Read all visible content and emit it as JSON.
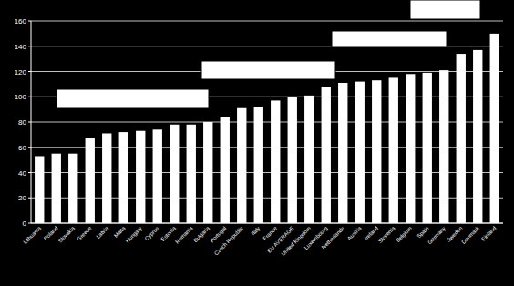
{
  "chart_data": {
    "type": "bar",
    "categories": [
      "Lithuania",
      "Poland",
      "Slovakia",
      "Greece",
      "Latvia",
      "Malta",
      "Hungary",
      "Cyprus",
      "Estonia",
      "Romania",
      "Bulgaria",
      "Portugal",
      "Czech Republic",
      "Italy",
      "France",
      "EU AVERAGE",
      "United Kingdom",
      "Luxembourg",
      "Netherlands",
      "Austria",
      "Ireland",
      "Slovenia",
      "Belgium",
      "Spain",
      "Germany",
      "Sweden",
      "Denmark",
      "Finland"
    ],
    "values": [
      53,
      55,
      55,
      67,
      71,
      72,
      73,
      74,
      78,
      78,
      80,
      84,
      91,
      92,
      97,
      100,
      101,
      108,
      111,
      112,
      113,
      115,
      118,
      119,
      121,
      134,
      137,
      150
    ],
    "color": "#ffffff",
    "ylim": [
      0,
      160
    ],
    "yticks": [
      0,
      20,
      40,
      60,
      80,
      100,
      120,
      140,
      160
    ],
    "grid": true
  }
}
